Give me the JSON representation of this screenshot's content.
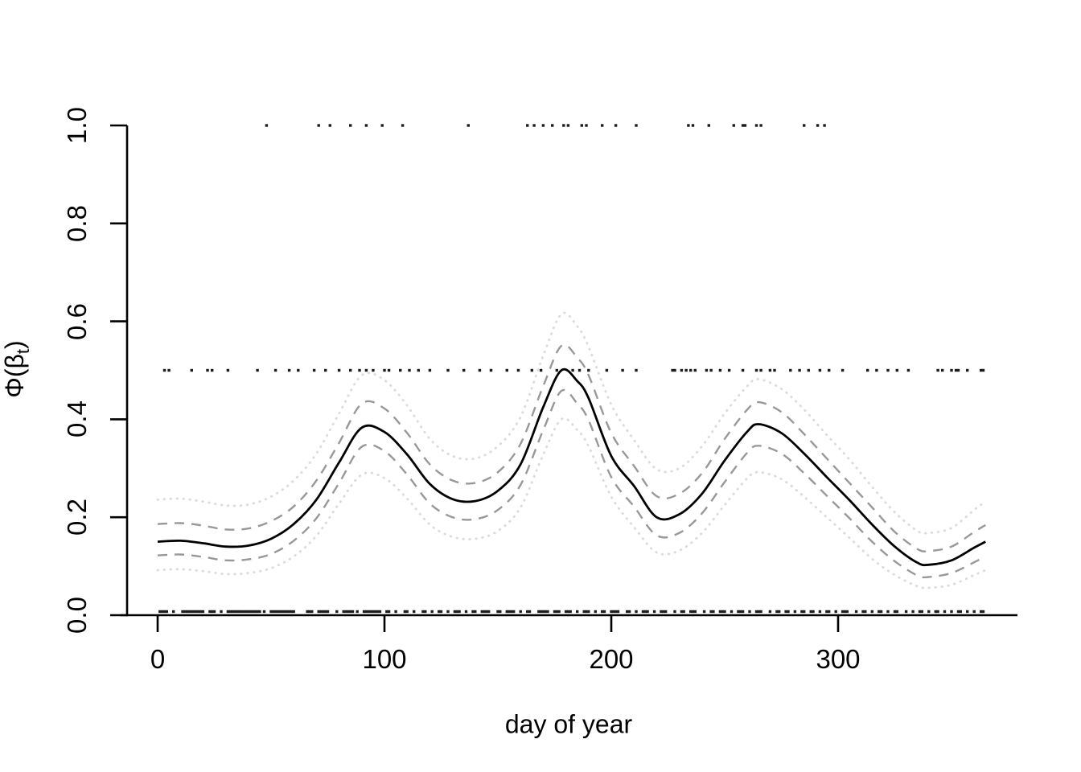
{
  "figure": {
    "background": "#ffffff",
    "ylabel_main": "Φ(β",
    "ylabel_sub": "t",
    "ylabel_close": ")"
  },
  "chart_data": {
    "type": "line",
    "title": "",
    "xlabel": "day of year",
    "ylabel": "Φ(β_t)",
    "xlim": [
      -15,
      380
    ],
    "ylim": [
      0.0,
      1.0
    ],
    "grid": false,
    "legend": "none",
    "x_ticks": [
      0,
      100,
      200,
      300
    ],
    "x_tick_labels": [
      "0",
      "100",
      "200",
      "300"
    ],
    "y_ticks": [
      0.0,
      0.2,
      0.4,
      0.6,
      0.8,
      1.0
    ],
    "y_tick_labels": [
      "0.0",
      "0.2",
      "0.4",
      "0.6",
      "0.8",
      "1.0"
    ],
    "axis_color": "#000000",
    "x": [
      0,
      10,
      20,
      30,
      40,
      50,
      60,
      70,
      80,
      90,
      100,
      110,
      120,
      130,
      140,
      150,
      160,
      170,
      178,
      185,
      190,
      200,
      210,
      220,
      230,
      240,
      250,
      260,
      265,
      275,
      285,
      295,
      305,
      315,
      325,
      335,
      340,
      350,
      360,
      365
    ],
    "series": [
      {
        "name": "posterior-mean",
        "style": "solid",
        "color": "#000000",
        "width": 2.8,
        "values": [
          0.15,
          0.152,
          0.147,
          0.14,
          0.142,
          0.156,
          0.186,
          0.236,
          0.312,
          0.383,
          0.374,
          0.328,
          0.268,
          0.237,
          0.233,
          0.254,
          0.308,
          0.425,
          0.5,
          0.478,
          0.443,
          0.325,
          0.264,
          0.2,
          0.206,
          0.248,
          0.316,
          0.375,
          0.39,
          0.372,
          0.33,
          0.282,
          0.235,
          0.185,
          0.14,
          0.107,
          0.103,
          0.112,
          0.138,
          0.15
        ]
      },
      {
        "name": "inner-band-upper",
        "style": "dashed",
        "color": "#989898",
        "width": 2.4,
        "values": [
          0.186,
          0.188,
          0.183,
          0.175,
          0.177,
          0.192,
          0.222,
          0.275,
          0.352,
          0.432,
          0.422,
          0.372,
          0.308,
          0.275,
          0.27,
          0.292,
          0.35,
          0.468,
          0.55,
          0.526,
          0.49,
          0.372,
          0.305,
          0.243,
          0.248,
          0.29,
          0.36,
          0.42,
          0.435,
          0.415,
          0.37,
          0.32,
          0.27,
          0.22,
          0.17,
          0.135,
          0.131,
          0.14,
          0.17,
          0.184
        ]
      },
      {
        "name": "inner-band-lower",
        "style": "dashed",
        "color": "#989898",
        "width": 2.4,
        "values": [
          0.122,
          0.124,
          0.119,
          0.112,
          0.114,
          0.125,
          0.152,
          0.198,
          0.27,
          0.344,
          0.335,
          0.287,
          0.228,
          0.2,
          0.196,
          0.215,
          0.266,
          0.378,
          0.458,
          0.432,
          0.398,
          0.282,
          0.222,
          0.163,
          0.168,
          0.208,
          0.272,
          0.332,
          0.346,
          0.33,
          0.29,
          0.244,
          0.198,
          0.15,
          0.11,
          0.081,
          0.078,
          0.086,
          0.108,
          0.12
        ]
      },
      {
        "name": "outer-band-upper",
        "style": "dotted",
        "color": "#dbdbdb",
        "width": 2.8,
        "values": [
          0.236,
          0.238,
          0.232,
          0.224,
          0.226,
          0.242,
          0.275,
          0.33,
          0.412,
          0.49,
          0.48,
          0.428,
          0.36,
          0.325,
          0.32,
          0.345,
          0.405,
          0.53,
          0.615,
          0.59,
          0.548,
          0.43,
          0.358,
          0.298,
          0.3,
          0.345,
          0.412,
          0.468,
          0.482,
          0.462,
          0.42,
          0.368,
          0.318,
          0.262,
          0.21,
          0.172,
          0.168,
          0.178,
          0.215,
          0.232
        ]
      },
      {
        "name": "outer-band-lower",
        "style": "dotted",
        "color": "#dbdbdb",
        "width": 2.8,
        "values": [
          0.092,
          0.094,
          0.09,
          0.084,
          0.086,
          0.096,
          0.12,
          0.162,
          0.228,
          0.287,
          0.28,
          0.238,
          0.185,
          0.16,
          0.156,
          0.172,
          0.22,
          0.328,
          0.4,
          0.378,
          0.345,
          0.242,
          0.18,
          0.128,
          0.132,
          0.168,
          0.225,
          0.28,
          0.292,
          0.278,
          0.242,
          0.2,
          0.158,
          0.115,
          0.082,
          0.059,
          0.056,
          0.062,
          0.082,
          0.092
        ]
      }
    ],
    "rug_points": {
      "color": "#1c1c1c",
      "size": 3.4,
      "rows": [
        {
          "name": "observations-y1",
          "y": 1.0,
          "days": [
            48,
            71,
            76,
            85,
            92,
            99,
            108,
            137,
            163,
            166,
            170,
            174,
            179,
            181,
            187,
            189,
            196,
            202,
            211,
            234,
            236,
            243,
            254,
            258,
            259,
            264,
            266,
            285,
            291,
            294
          ]
        },
        {
          "name": "observations-y05",
          "y": 0.5,
          "days": [
            3,
            5,
            15,
            22,
            24,
            31,
            44,
            52,
            58,
            62,
            69,
            74,
            80,
            85,
            89,
            92,
            95,
            100,
            102,
            107,
            111,
            115,
            120,
            128,
            135,
            142,
            147,
            154,
            159,
            165,
            169,
            176,
            183,
            186,
            190,
            198,
            205,
            211,
            227,
            228,
            231,
            233,
            235,
            237,
            242,
            244,
            248,
            252,
            258,
            264,
            266,
            270,
            272,
            279,
            283,
            287,
            292,
            296,
            302,
            313,
            317,
            322,
            326,
            331,
            344,
            346,
            350,
            352,
            353,
            357,
            363,
            364
          ]
        },
        {
          "name": "observations-y0",
          "y": 0.0,
          "days": [
            1,
            2,
            3,
            4,
            7,
            11,
            12,
            13,
            14,
            15,
            16,
            17,
            18,
            19,
            20,
            23,
            24,
            25,
            28,
            31,
            32,
            33,
            34,
            35,
            36,
            37,
            38,
            39,
            40,
            41,
            42,
            43,
            44,
            45,
            47,
            50,
            51,
            52,
            53,
            54,
            55,
            56,
            57,
            58,
            59,
            60,
            66,
            67,
            68,
            71,
            72,
            73,
            74,
            75,
            79,
            82,
            83,
            84,
            85,
            86,
            88,
            91,
            92,
            93,
            94,
            95,
            96,
            97,
            98,
            101,
            102,
            105,
            109,
            110,
            113,
            117,
            118,
            121,
            124,
            125,
            128,
            131,
            132,
            133,
            136,
            139,
            140,
            143,
            144,
            145,
            146,
            150,
            151,
            154,
            155,
            156,
            157,
            160,
            163,
            164,
            168,
            169,
            170,
            171,
            172,
            175,
            176,
            177,
            180,
            181,
            182,
            185,
            188,
            189,
            190,
            193,
            196,
            197,
            200,
            201,
            202,
            203,
            207,
            208,
            211,
            214,
            215,
            216,
            219,
            222,
            223,
            224,
            228,
            231,
            232,
            235,
            236,
            237,
            241,
            244,
            245,
            248,
            249,
            250,
            253,
            256,
            257,
            258,
            261,
            264,
            265,
            266,
            270,
            273,
            274,
            277,
            278,
            281,
            284,
            285,
            288,
            289,
            292,
            295,
            296,
            299,
            302,
            303,
            304,
            308,
            311,
            312,
            315,
            318,
            319,
            322,
            325,
            326,
            330,
            333,
            336,
            337,
            340,
            343,
            344,
            347,
            350,
            353,
            354,
            357,
            360,
            363,
            364
          ]
        }
      ]
    }
  }
}
